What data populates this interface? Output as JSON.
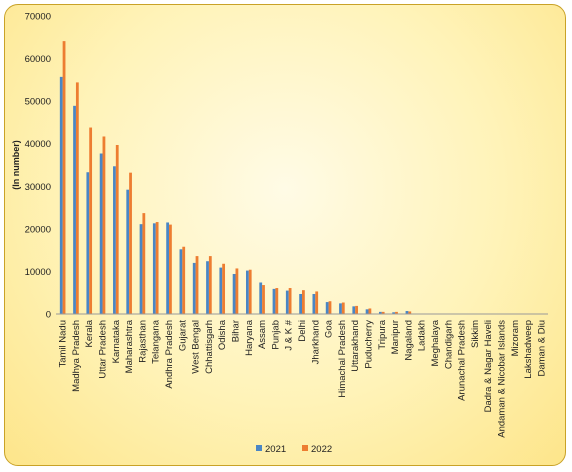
{
  "chart_data": {
    "type": "bar",
    "ylabel": "(In number)",
    "ylim": [
      0,
      70000
    ],
    "yticks": [
      0,
      10000,
      20000,
      30000,
      40000,
      50000,
      60000,
      70000
    ],
    "legend_position": "bottom",
    "grid": false,
    "categories": [
      "Tamil Nadu",
      "Madhya Pradesh",
      "Kerala",
      "Uttar Pradesh",
      "Karnataka",
      "Maharashtra",
      "Rajasthan",
      "Telangana",
      "Andhra Pradesh",
      "Gujarat",
      "West Bengal",
      "Chhattisgarh",
      "Odisha",
      "Bihar",
      "Haryana",
      "Assam",
      "Punjab",
      "J & K #",
      "Delhi",
      "Jharkhand",
      "Goa",
      "Himachal Pradesh",
      "Uttarakhand",
      "Puducherry",
      "Tripura",
      "Manipur",
      "Nagaland",
      "Ladakh",
      "Meghalaya",
      "Chandigarh",
      "Arunachal Pradesh",
      "Sikkim",
      "Dadra & Nagar Haveli",
      "Andaman & Nicobar Islands",
      "Mizoram",
      "Lakshadweep",
      "Daman & Diu"
    ],
    "series": [
      {
        "name": "2021",
        "color": "#4a86c5",
        "values": [
          55700,
          48900,
          33300,
          37700,
          34700,
          29200,
          21100,
          21300,
          21500,
          15200,
          12000,
          12400,
          10900,
          9400,
          10200,
          7400,
          5900,
          5500,
          4700,
          4700,
          2800,
          2500,
          1800,
          1100,
          500,
          400,
          700,
          100,
          100,
          100,
          100,
          100,
          100,
          100,
          100,
          100,
          100
        ]
      },
      {
        "name": "2022",
        "color": "#ed7d31",
        "values": [
          64100,
          54400,
          43800,
          41700,
          39700,
          33200,
          23700,
          21600,
          21000,
          15800,
          13600,
          13600,
          11800,
          10700,
          10400,
          6800,
          6100,
          6100,
          5600,
          5300,
          3000,
          2700,
          1900,
          1300,
          500,
          500,
          600,
          100,
          100,
          100,
          100,
          100,
          100,
          100,
          100,
          100,
          100
        ]
      }
    ]
  }
}
